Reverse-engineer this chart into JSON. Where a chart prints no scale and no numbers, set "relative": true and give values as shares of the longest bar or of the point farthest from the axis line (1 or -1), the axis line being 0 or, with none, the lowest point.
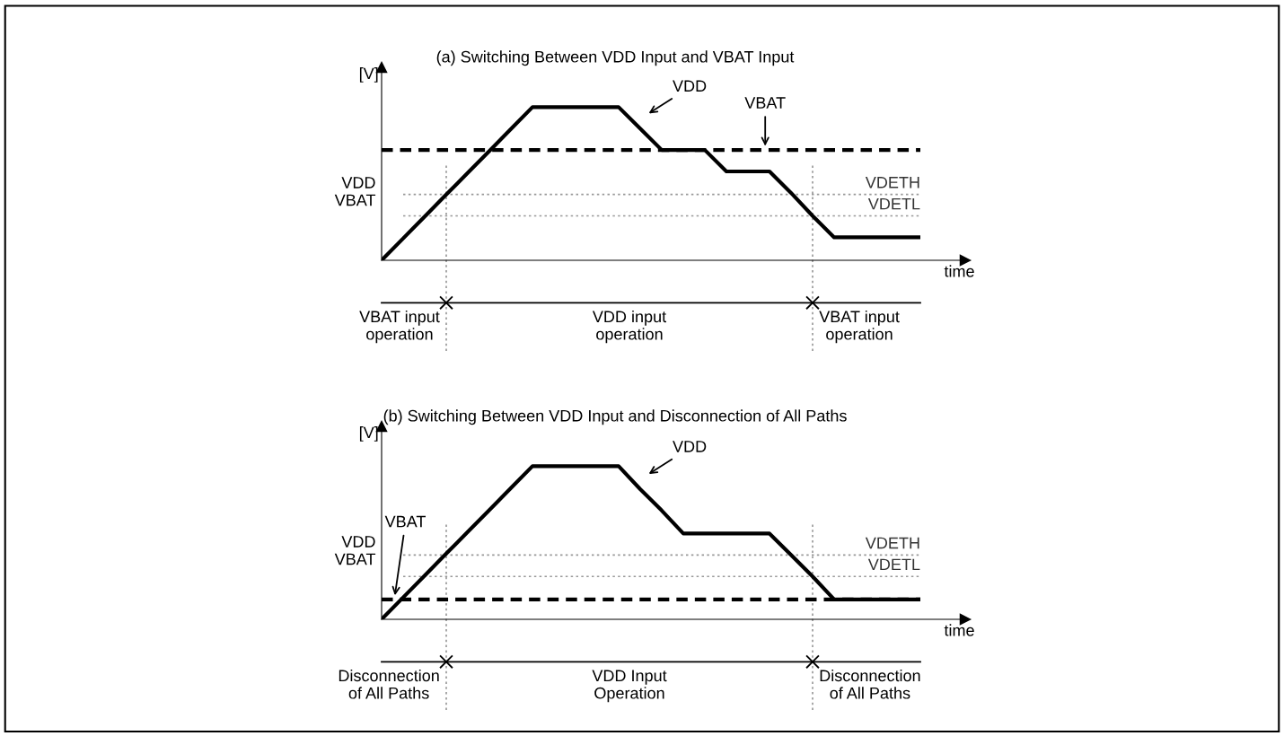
{
  "chart_data": [
    {
      "type": "line",
      "relative": true,
      "title": "(a) Switching Between VDD Input and VBAT Input",
      "xlabel": "time",
      "ylabel": "VDD\nVBAT",
      "categories": [
        null,
        null,
        null,
        null,
        null,
        null,
        null,
        null,
        null,
        null,
        null,
        null,
        null,
        null,
        null,
        null,
        null,
        null,
        null,
        null,
        null,
        null,
        null,
        null,
        null,
        null
      ],
      "series": [
        {
          "name": "VDD",
          "color": "#000000",
          "line_style": "solid",
          "values": [
            0,
            0.143,
            0.286,
            0.429,
            0.571,
            0.714,
            0.857,
            1,
            1,
            1,
            1,
            1,
            0.86,
            0.72,
            0.72,
            0.72,
            0.58,
            0.58,
            0.58,
            0.44,
            0.29,
            0.15,
            0.15,
            0.15,
            0.15,
            0.15
          ]
        },
        {
          "name": "VBAT",
          "color": "#000000",
          "line_style": "dashed",
          "values": [
            0.72,
            0.72,
            0.72,
            0.72,
            0.72,
            0.72,
            0.72,
            0.72,
            0.72,
            0.72,
            0.72,
            0.72,
            0.72,
            0.72,
            0.72,
            0.72,
            0.72,
            0.72,
            0.72,
            0.72,
            0.72,
            0.72,
            0.72,
            0.72,
            0.72,
            0.72
          ]
        }
      ],
      "ref_lines": [
        {
          "axis": "y",
          "value": 0.43,
          "label": "VDETH",
          "color": "#999999",
          "line_style": "dotted"
        },
        {
          "axis": "y",
          "value": 0.29,
          "label": "VDETL",
          "color": "#999999",
          "line_style": "dotted"
        }
      ],
      "annotations": [
        "[V]",
        "VBAT input\noperation",
        "VDD input\noperation",
        "VBAT input\noperation"
      ]
    },
    {
      "type": "line",
      "relative": true,
      "title": "(b) Switching Between VDD Input and Disconnection of All Paths",
      "xlabel": "time",
      "ylabel": "VDD\nVBAT",
      "categories": [
        null,
        null,
        null,
        null,
        null,
        null,
        null,
        null,
        null,
        null,
        null,
        null,
        null,
        null,
        null,
        null,
        null,
        null,
        null,
        null,
        null,
        null,
        null,
        null,
        null,
        null
      ],
      "series": [
        {
          "name": "VDD",
          "color": "#000000",
          "line_style": "solid",
          "values": [
            0,
            0.143,
            0.286,
            0.429,
            0.571,
            0.714,
            0.857,
            1,
            1,
            1,
            1,
            1,
            0.85,
            0.71,
            0.56,
            0.56,
            0.56,
            0.56,
            0.56,
            0.42,
            0.28,
            0.13,
            0.13,
            0.13,
            0.13,
            0.13
          ]
        },
        {
          "name": "VBAT",
          "color": "#000000",
          "line_style": "dashed",
          "values": [
            0.13,
            0.13,
            0.13,
            0.13,
            0.13,
            0.13,
            0.13,
            0.13,
            0.13,
            0.13,
            0.13,
            0.13,
            0.13,
            0.13,
            0.13,
            0.13,
            0.13,
            0.13,
            0.13,
            0.13,
            0.13,
            0.13,
            0.13,
            0.13,
            0.13,
            0.13
          ]
        }
      ],
      "ref_lines": [
        {
          "axis": "y",
          "value": 0.42,
          "label": "VDETH",
          "color": "#999999",
          "line_style": "dotted"
        },
        {
          "axis": "y",
          "value": 0.28,
          "label": "VDETL",
          "color": "#999999",
          "line_style": "dotted"
        }
      ],
      "annotations": [
        "[V]",
        "Disconnection\nof All Paths",
        "VDD Input\nOperation",
        "Disconnection\nof All Paths"
      ]
    }
  ]
}
